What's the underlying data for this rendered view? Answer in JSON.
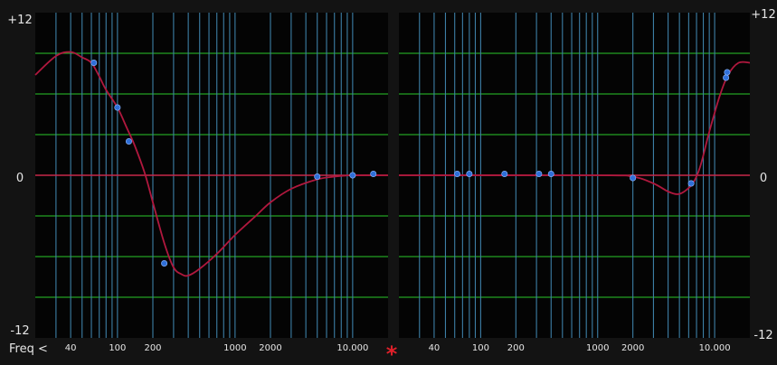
{
  "labels": {
    "top_left": "+12",
    "top_right": "+12",
    "mid_left": "0",
    "mid_right": "0",
    "bottom_left": "-12",
    "bottom_right": "-12",
    "freq_button": "Freq <",
    "link_marker": "*"
  },
  "colors": {
    "background": "#131313",
    "plot_bg": "#040404",
    "db_grid": "#23a023",
    "freq_grid": "#3d7fa6",
    "zero_line": "#c8284a",
    "curve": "#b0183e",
    "node": "#2f6fd8",
    "text": "#e6e6e6",
    "marker": "#e0202a"
  },
  "freq_tick_labels": [
    {
      "freq": 40,
      "label": "40"
    },
    {
      "freq": 100,
      "label": "100"
    },
    {
      "freq": 200,
      "label": "200"
    },
    {
      "freq": 1000,
      "label": "1000"
    },
    {
      "freq": 2000,
      "label": "2000"
    },
    {
      "freq": 10000,
      "label": "10.000"
    }
  ],
  "chart_data": [
    {
      "type": "line",
      "name": "",
      "x_scale": "log",
      "xlim": [
        20,
        20000
      ],
      "ylim": [
        -12,
        12
      ],
      "y_grid": [
        -9,
        -6,
        -3,
        0,
        3,
        6,
        9
      ],
      "curve": [
        [
          20,
          7.4
        ],
        [
          30,
          8.8
        ],
        [
          40,
          9.1
        ],
        [
          50,
          8.7
        ],
        [
          60,
          8.3
        ],
        [
          70,
          7.3
        ],
        [
          80,
          6.3
        ],
        [
          100,
          5.0
        ],
        [
          120,
          3.5
        ],
        [
          140,
          2.2
        ],
        [
          170,
          0.2
        ],
        [
          200,
          -2.0
        ],
        [
          250,
          -5.0
        ],
        [
          300,
          -6.8
        ],
        [
          350,
          -7.3
        ],
        [
          400,
          -7.4
        ],
        [
          500,
          -6.9
        ],
        [
          700,
          -5.8
        ],
        [
          1000,
          -4.4
        ],
        [
          1500,
          -3.0
        ],
        [
          2000,
          -2.0
        ],
        [
          3000,
          -1.0
        ],
        [
          5000,
          -0.3
        ],
        [
          7000,
          -0.1
        ],
        [
          10000,
          0.0
        ],
        [
          20000,
          0.0
        ]
      ],
      "nodes": [
        {
          "freq": 63,
          "gain": 8.3
        },
        {
          "freq": 100,
          "gain": 5.0
        },
        {
          "freq": 125,
          "gain": 2.5
        },
        {
          "freq": 250,
          "gain": -6.5
        },
        {
          "freq": 5000,
          "gain": -0.1
        },
        {
          "freq": 10000,
          "gain": 0.0
        },
        {
          "freq": 15000,
          "gain": 0.1
        }
      ]
    },
    {
      "type": "line",
      "name": "",
      "x_scale": "log",
      "xlim": [
        20,
        20000
      ],
      "ylim": [
        -12,
        12
      ],
      "y_grid": [
        -9,
        -6,
        -3,
        0,
        3,
        6,
        9
      ],
      "curve": [
        [
          20,
          0.0
        ],
        [
          1000,
          0.0
        ],
        [
          2000,
          -0.1
        ],
        [
          3000,
          -0.6
        ],
        [
          4000,
          -1.2
        ],
        [
          4800,
          -1.4
        ],
        [
          5500,
          -1.2
        ],
        [
          6500,
          -0.6
        ],
        [
          7500,
          0.6
        ],
        [
          9000,
          3.2
        ],
        [
          11000,
          5.8
        ],
        [
          13000,
          7.4
        ],
        [
          16000,
          8.3
        ],
        [
          20000,
          8.3
        ]
      ],
      "nodes": [
        {
          "freq": 63,
          "gain": 0.1
        },
        {
          "freq": 80,
          "gain": 0.1
        },
        {
          "freq": 160,
          "gain": 0.1
        },
        {
          "freq": 315,
          "gain": 0.1
        },
        {
          "freq": 400,
          "gain": 0.1
        },
        {
          "freq": 2000,
          "gain": -0.2
        },
        {
          "freq": 6300,
          "gain": -0.6
        },
        {
          "freq": 12500,
          "gain": 7.2
        },
        {
          "freq": 12800,
          "gain": 7.6
        }
      ]
    }
  ]
}
